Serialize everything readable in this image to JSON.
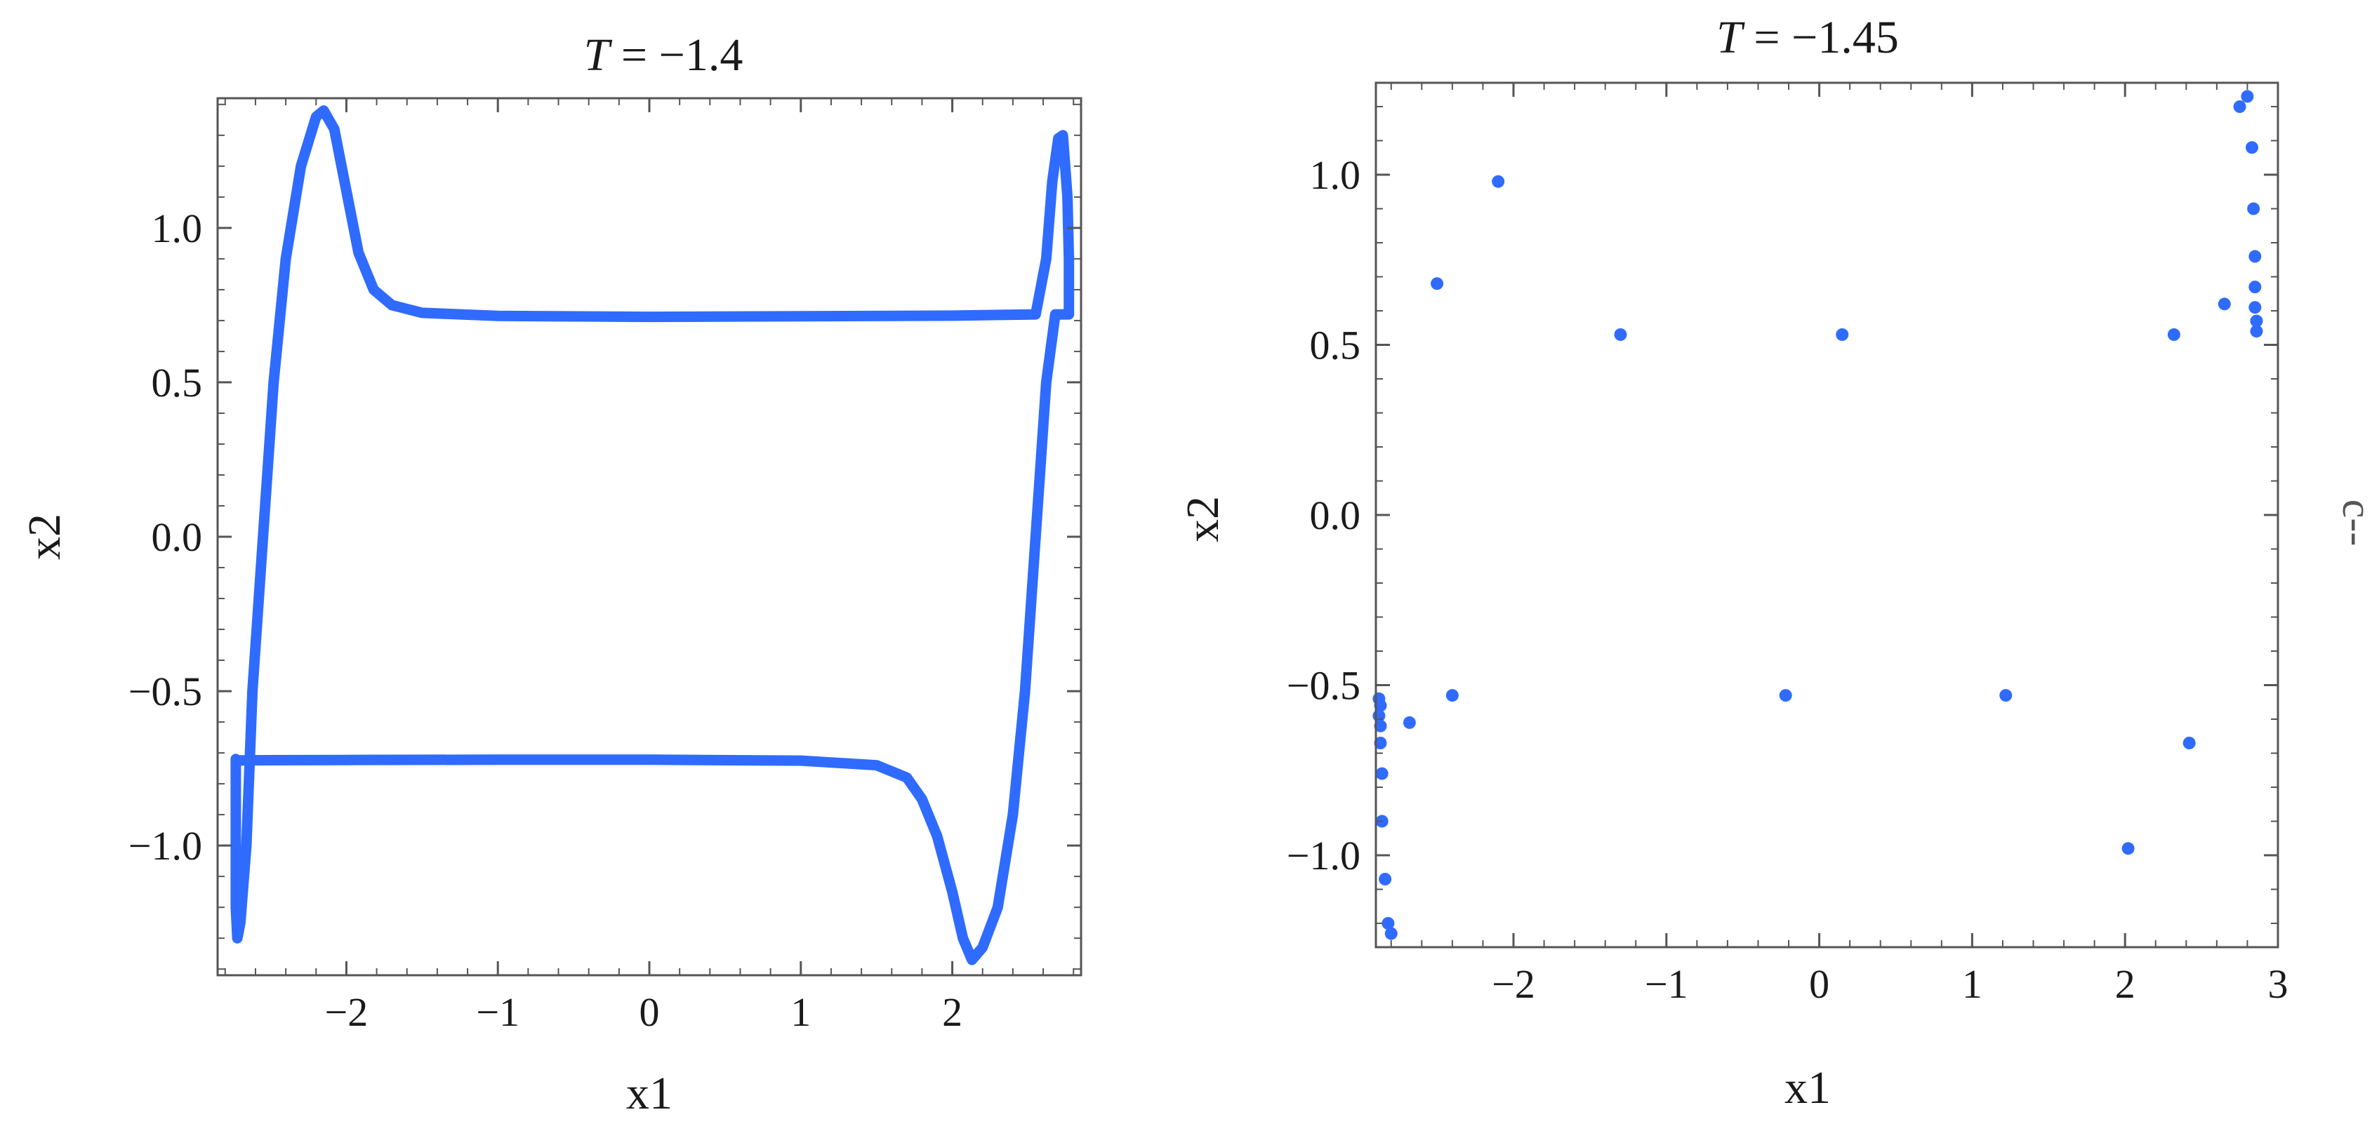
{
  "figure_text": {
    "stray_mark": "c--"
  },
  "chart_data": [
    {
      "type": "line",
      "title_prefix": "T",
      "title_value": " = −1.4",
      "xlabel": "x1",
      "ylabel": "x2",
      "xlim": [
        -2.85,
        2.85
      ],
      "ylim": [
        -1.42,
        1.42
      ],
      "xticks": [
        -2,
        -1,
        0,
        1,
        2
      ],
      "xtick_labels": [
        "−2",
        "−1",
        "0",
        "1",
        "2"
      ],
      "yticks": [
        -1.0,
        -0.5,
        0.0,
        0.5,
        1.0
      ],
      "ytick_labels": [
        "−1.0",
        "−0.5",
        "0.0",
        "0.5",
        "1.0"
      ],
      "grid": false,
      "series": [
        {
          "color": "#2f6bff",
          "points": [
            [
              -2.73,
              -0.72
            ],
            [
              -2.73,
              -1.2
            ],
            [
              -2.72,
              -1.3
            ],
            [
              -2.7,
              -1.25
            ],
            [
              -2.66,
              -1.0
            ],
            [
              -2.62,
              -0.5
            ],
            [
              -2.55,
              0.0
            ],
            [
              -2.48,
              0.5
            ],
            [
              -2.4,
              0.9
            ],
            [
              -2.3,
              1.2
            ],
            [
              -2.2,
              1.36
            ],
            [
              -2.15,
              1.38
            ],
            [
              -2.08,
              1.32
            ],
            [
              -2.0,
              1.12
            ],
            [
              -1.92,
              0.92
            ],
            [
              -1.82,
              0.8
            ],
            [
              -1.7,
              0.75
            ],
            [
              -1.5,
              0.725
            ],
            [
              -1.0,
              0.715
            ],
            [
              0.0,
              0.712
            ],
            [
              1.0,
              0.714
            ],
            [
              2.0,
              0.716
            ],
            [
              2.55,
              0.72
            ],
            [
              2.62,
              0.9
            ],
            [
              2.66,
              1.15
            ],
            [
              2.7,
              1.29
            ],
            [
              2.73,
              1.3
            ],
            [
              2.76,
              1.1
            ],
            [
              2.77,
              0.9
            ],
            [
              2.77,
              0.72
            ],
            [
              2.68,
              0.72
            ],
            [
              2.62,
              0.5
            ],
            [
              2.55,
              0.0
            ],
            [
              2.48,
              -0.5
            ],
            [
              2.4,
              -0.9
            ],
            [
              2.3,
              -1.2
            ],
            [
              2.2,
              -1.33
            ],
            [
              2.13,
              -1.37
            ],
            [
              2.07,
              -1.3
            ],
            [
              2.0,
              -1.15
            ],
            [
              1.9,
              -0.97
            ],
            [
              1.8,
              -0.85
            ],
            [
              1.7,
              -0.78
            ],
            [
              1.5,
              -0.74
            ],
            [
              1.0,
              -0.725
            ],
            [
              0.0,
              -0.722
            ],
            [
              -1.0,
              -0.722
            ],
            [
              -2.0,
              -0.723
            ],
            [
              -2.73,
              -0.724
            ]
          ]
        }
      ]
    },
    {
      "type": "scatter",
      "title_prefix": "T",
      "title_value": " = −1.45",
      "xlabel": "x1",
      "ylabel": "x2",
      "xlim": [
        -2.9,
        3.0
      ],
      "ylim": [
        -1.27,
        1.27
      ],
      "xticks": [
        -2,
        -1,
        0,
        1,
        2,
        3
      ],
      "xtick_labels": [
        "−2",
        "−1",
        "0",
        "1",
        "2",
        "3"
      ],
      "yticks": [
        -1.0,
        -0.5,
        0.0,
        0.5,
        1.0
      ],
      "ytick_labels": [
        "−1.0",
        "−0.5",
        "0.0",
        "0.5",
        "1.0"
      ],
      "grid": false,
      "series": [
        {
          "color": "#2f6bff",
          "points": [
            [
              -2.1,
              0.98
            ],
            [
              -2.5,
              0.68
            ],
            [
              -1.3,
              0.53
            ],
            [
              0.15,
              0.53
            ],
            [
              2.32,
              0.53
            ],
            [
              2.65,
              0.62
            ],
            [
              2.75,
              1.2
            ],
            [
              2.8,
              1.23
            ],
            [
              2.83,
              1.08
            ],
            [
              2.84,
              0.9
            ],
            [
              2.85,
              0.76
            ],
            [
              2.85,
              0.67
            ],
            [
              2.85,
              0.61
            ],
            [
              2.86,
              0.57
            ],
            [
              2.86,
              0.54
            ],
            [
              -2.88,
              -0.54
            ],
            [
              -2.87,
              -0.56
            ],
            [
              -2.88,
              -0.59
            ],
            [
              -2.87,
              -0.62
            ],
            [
              -2.87,
              -0.67
            ],
            [
              -2.86,
              -0.76
            ],
            [
              -2.86,
              -0.9
            ],
            [
              -2.84,
              -1.07
            ],
            [
              -2.82,
              -1.2
            ],
            [
              -2.8,
              -1.23
            ],
            [
              -2.68,
              -0.61
            ],
            [
              -2.4,
              -0.53
            ],
            [
              -0.22,
              -0.53
            ],
            [
              1.22,
              -0.53
            ],
            [
              2.42,
              -0.67
            ],
            [
              2.02,
              -0.98
            ]
          ]
        }
      ]
    }
  ]
}
